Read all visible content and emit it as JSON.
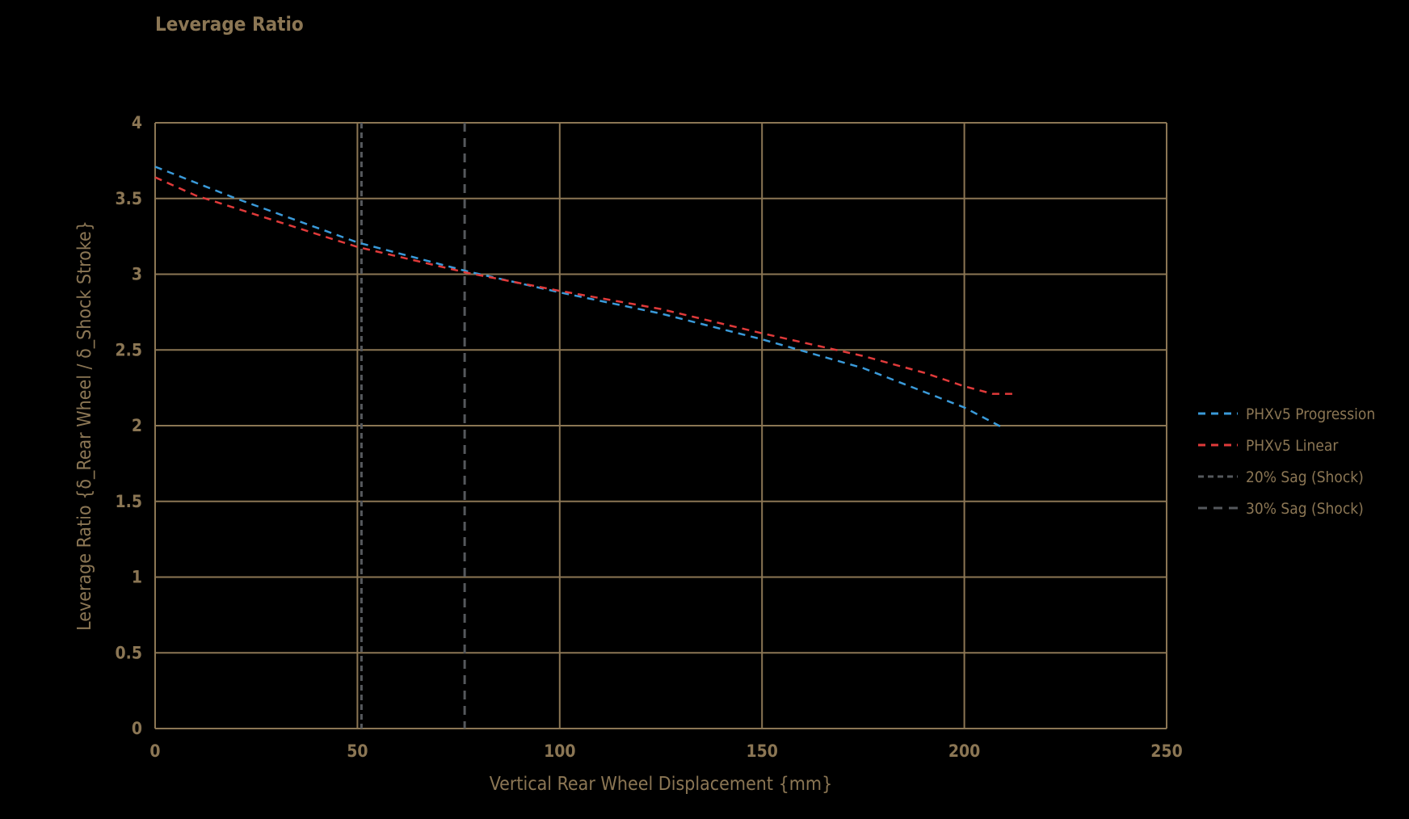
{
  "chart_data": {
    "type": "line",
    "title": "Leverage Ratio",
    "xlabel": "Vertical Rear Wheel Displacement {mm}",
    "ylabel": "Leverage Ratio {δ_Rear Wheel / δ_Shock Stroke}",
    "xlim": [
      0,
      250
    ],
    "ylim": [
      0,
      4
    ],
    "xticks": [
      0,
      50,
      100,
      150,
      200,
      250
    ],
    "yticks": [
      0,
      0.5,
      1,
      1.5,
      2,
      2.5,
      3,
      3.5,
      4
    ],
    "ytick_labels": [
      "0",
      "0.5",
      "1",
      "1.5",
      "2",
      "2.5",
      "3",
      "3.5",
      "4"
    ],
    "grid": true,
    "legend_position": "right",
    "series": [
      {
        "name": "PHXv5 Progression",
        "color": "#3a9ad9",
        "dash": "dashed",
        "x": [
          0,
          20,
          50,
          77,
          100,
          125,
          150,
          175,
          200,
          210
        ],
        "y": [
          3.71,
          3.5,
          3.21,
          3.02,
          2.88,
          2.74,
          2.57,
          2.38,
          2.12,
          1.98
        ]
      },
      {
        "name": "PHXv5 Linear",
        "color": "#e03a3a",
        "dash": "dashed",
        "x": [
          0,
          10,
          50,
          77,
          100,
          125,
          150,
          175,
          190,
          200,
          207,
          212
        ],
        "y": [
          3.64,
          3.52,
          3.18,
          3.01,
          2.89,
          2.77,
          2.61,
          2.46,
          2.35,
          2.26,
          2.21,
          2.21
        ]
      }
    ],
    "vlines": [
      {
        "name": "20% Sag (Shock)",
        "x": 51,
        "color": "#55585c",
        "dash": "short"
      },
      {
        "name": "30% Sag (Shock)",
        "x": 76.5,
        "color": "#55585c",
        "dash": "long"
      }
    ]
  }
}
